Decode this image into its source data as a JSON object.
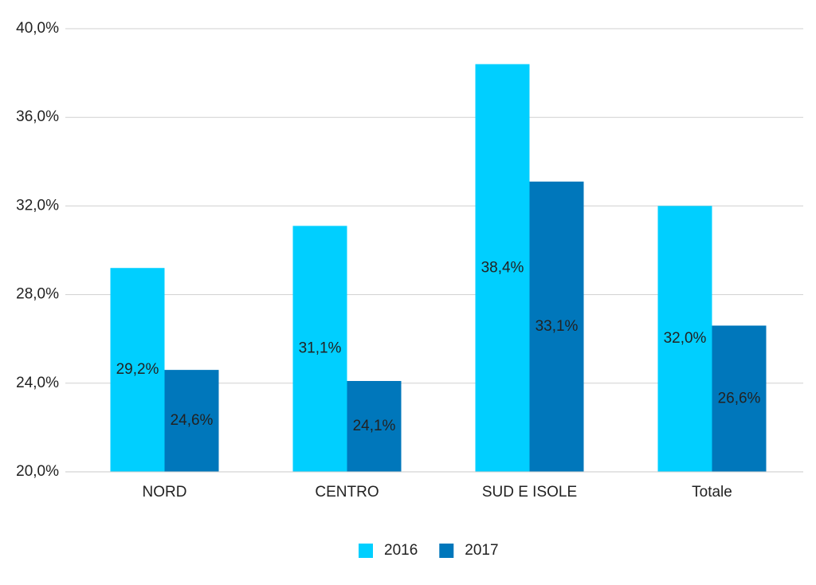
{
  "chart_data": {
    "type": "bar",
    "categories": [
      "NORD",
      "CENTRO",
      "SUD E ISOLE",
      "Totale"
    ],
    "series": [
      {
        "name": "2016",
        "color": "#00cfff",
        "values": [
          29.2,
          31.1,
          38.4,
          32.0
        ],
        "value_labels": [
          "29,2%",
          "31,1%",
          "38,4%",
          "32,0%"
        ]
      },
      {
        "name": "2017",
        "color": "#0077bb",
        "values": [
          24.6,
          24.1,
          33.1,
          26.6
        ],
        "value_labels": [
          "24,6%",
          "24,1%",
          "33,1%",
          "26,6%"
        ]
      }
    ],
    "ylim": [
      20,
      40
    ],
    "yticks": [
      {
        "value": 20,
        "label": "20,0%"
      },
      {
        "value": 24,
        "label": "24,0%"
      },
      {
        "value": 28,
        "label": "28,0%"
      },
      {
        "value": 32,
        "label": "32,0%"
      },
      {
        "value": 36,
        "label": "36,0%"
      },
      {
        "value": 40,
        "label": "40,0%"
      }
    ],
    "grid": true,
    "legend": "bottom"
  }
}
